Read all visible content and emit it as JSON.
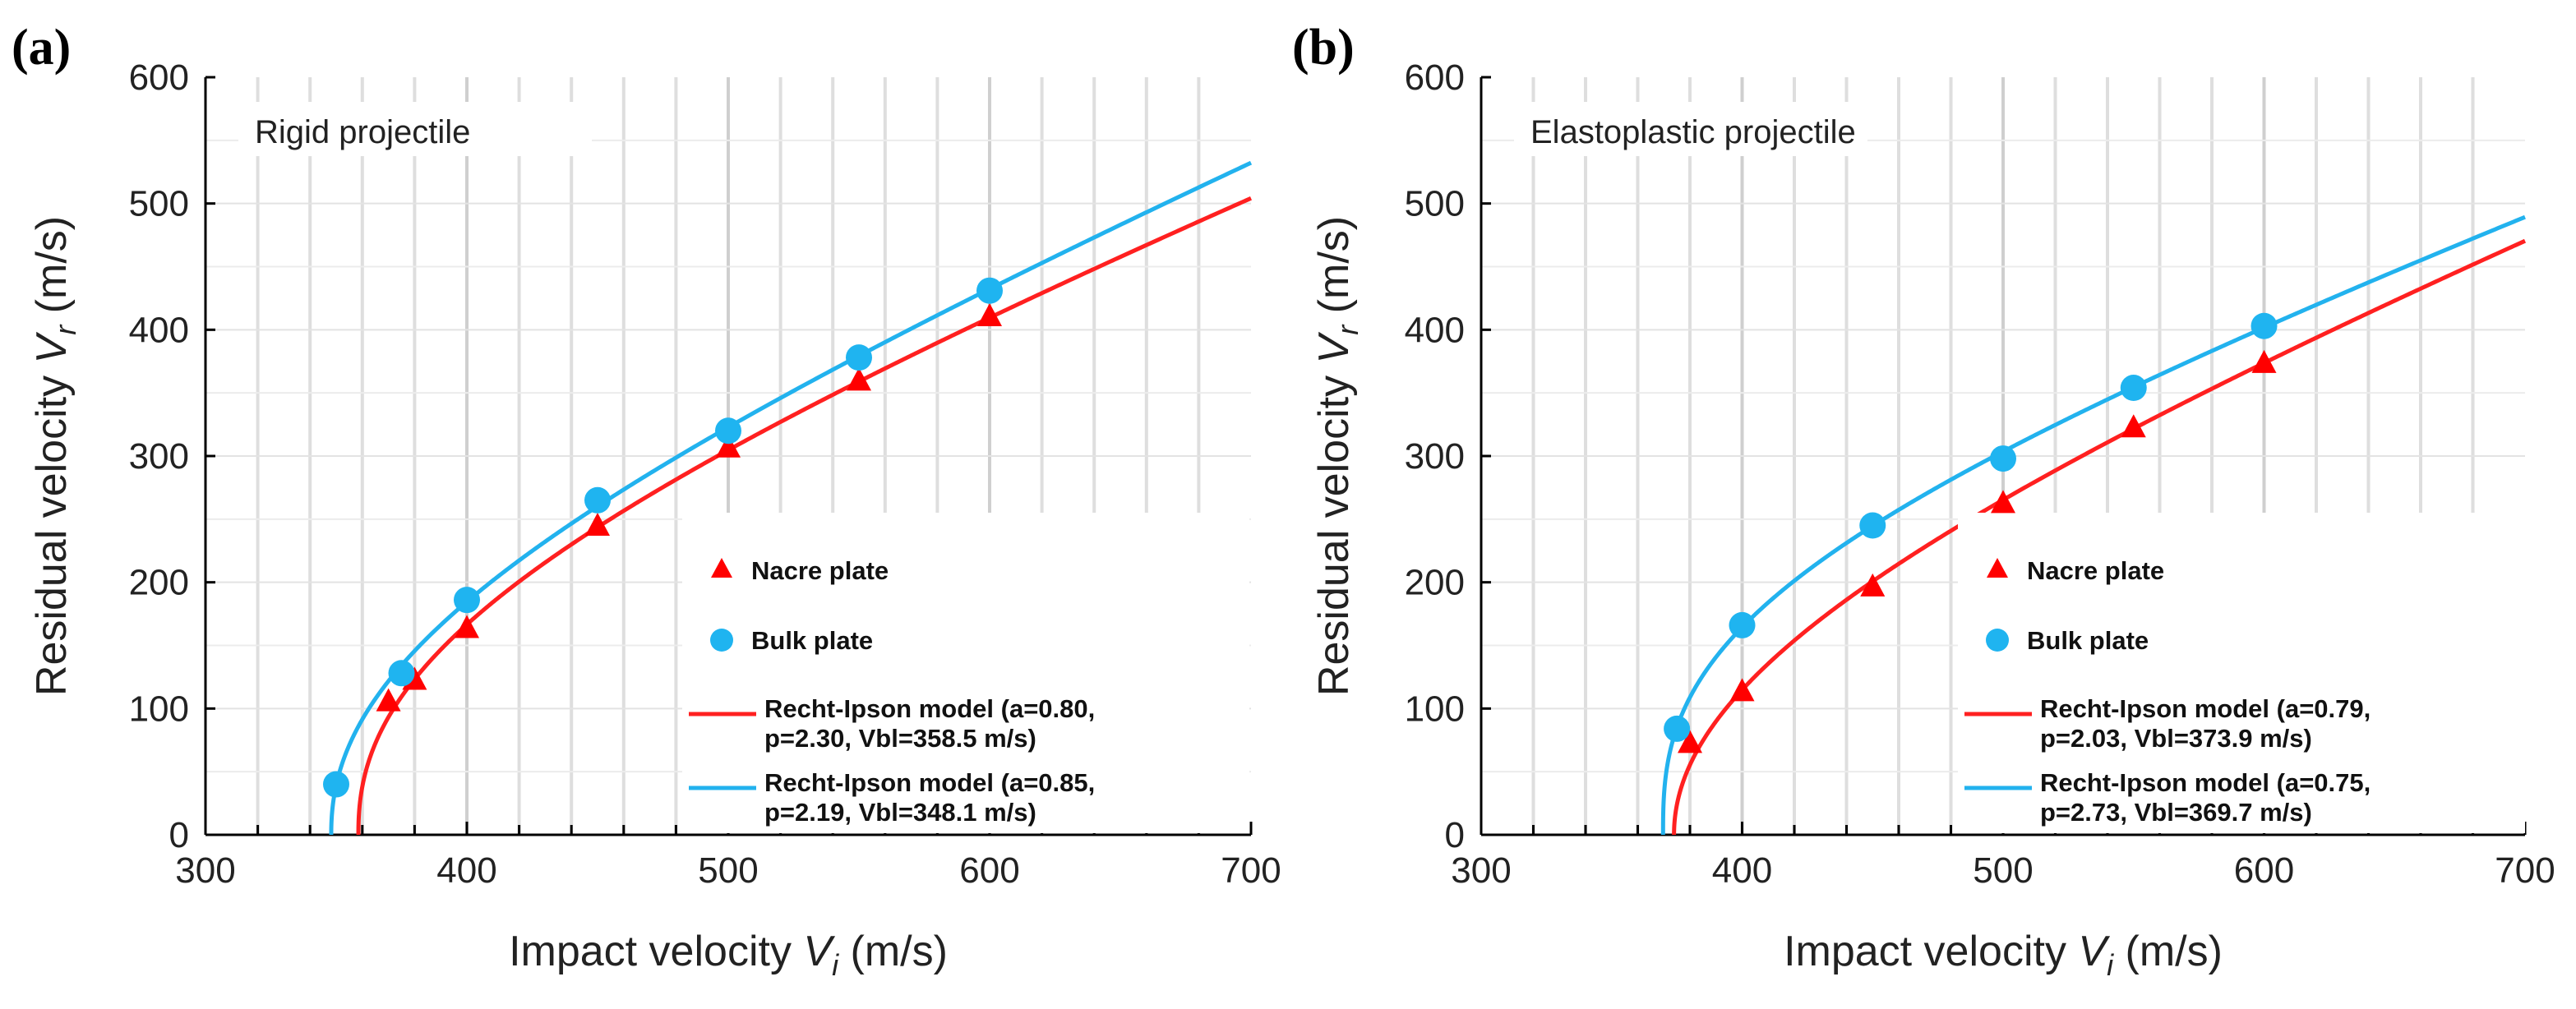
{
  "chart_data": [
    {
      "type": "scatter",
      "panel_label": "(a)",
      "note": "Rigid projectile",
      "xlabel_prefix": "Impact velocity ",
      "xlabel_symbol": "V",
      "xlabel_sub": "i",
      "xlabel_suffix": " (m/s)",
      "ylabel_prefix": "Residual velocity ",
      "ylabel_symbol": "V",
      "ylabel_sub": "r",
      "ylabel_suffix": " (m/s)",
      "xlim": [
        300,
        700
      ],
      "ylim": [
        0,
        600
      ],
      "xticks": [
        300,
        400,
        500,
        600,
        700
      ],
      "yticks": [
        0,
        100,
        200,
        300,
        400,
        500,
        600
      ],
      "grid": true,
      "legend_position": "bottom-right",
      "series": [
        {
          "name": "Nacre plate",
          "marker": "triangle",
          "color": "#ff0000",
          "points": [
            [
              370,
              105
            ],
            [
              380,
              122
            ],
            [
              400,
              163
            ],
            [
              450,
              244
            ],
            [
              500,
              306
            ],
            [
              550,
              359
            ],
            [
              600,
              410
            ]
          ]
        },
        {
          "name": "Bulk plate",
          "marker": "circle",
          "color": "#1fb4f0",
          "points": [
            [
              350,
              40
            ],
            [
              375,
              128
            ],
            [
              400,
              186
            ],
            [
              450,
              265
            ],
            [
              500,
              320
            ],
            [
              550,
              378
            ],
            [
              600,
              431
            ]
          ]
        }
      ],
      "models": [
        {
          "name_line1": "Recht-Ipson model (a=0.80,",
          "name_line2": "p=2.30, Vbl=358.5 m/s)",
          "color": "#ff2020",
          "a": 0.8,
          "p": 2.3,
          "vbl": 358.5
        },
        {
          "name_line1": "Recht-Ipson model (a=0.85,",
          "name_line2": "p=2.19, Vbl=348.1 m/s)",
          "color": "#22b2ee",
          "a": 0.85,
          "p": 2.19,
          "vbl": 348.1
        }
      ]
    },
    {
      "type": "scatter",
      "panel_label": "(b)",
      "note": "Elastoplastic projectile",
      "xlabel_prefix": "Impact velocity ",
      "xlabel_symbol": "V",
      "xlabel_sub": "i",
      "xlabel_suffix": " (m/s)",
      "ylabel_prefix": "Residual velocity ",
      "ylabel_symbol": "V",
      "ylabel_sub": "r",
      "ylabel_suffix": " (m/s)",
      "xlim": [
        300,
        700
      ],
      "ylim": [
        0,
        600
      ],
      "xticks": [
        300,
        400,
        500,
        600,
        700
      ],
      "yticks": [
        0,
        100,
        200,
        300,
        400,
        500,
        600
      ],
      "grid": true,
      "legend_position": "bottom-right",
      "series": [
        {
          "name": "Nacre plate",
          "marker": "triangle",
          "color": "#ff0000",
          "points": [
            [
              380,
              72
            ],
            [
              400,
              113
            ],
            [
              450,
              196
            ],
            [
              500,
              262
            ],
            [
              550,
              322
            ],
            [
              600,
              373
            ]
          ]
        },
        {
          "name": "Bulk plate",
          "marker": "circle",
          "color": "#1fb4f0",
          "points": [
            [
              375,
              84
            ],
            [
              400,
              166
            ],
            [
              450,
              245
            ],
            [
              500,
              298
            ],
            [
              550,
              354
            ],
            [
              600,
              403
            ]
          ]
        }
      ],
      "models": [
        {
          "name_line1": "Recht-Ipson model (a=0.79,",
          "name_line2": "p=2.03, Vbl=373.9 m/s)",
          "color": "#ff2020",
          "a": 0.79,
          "p": 2.03,
          "vbl": 373.9
        },
        {
          "name_line1": "Recht-Ipson model (a=0.75,",
          "name_line2": "p=2.73, Vbl=369.7 m/s)",
          "color": "#22b2ee",
          "a": 0.75,
          "p": 2.73,
          "vbl": 369.7
        }
      ]
    }
  ]
}
